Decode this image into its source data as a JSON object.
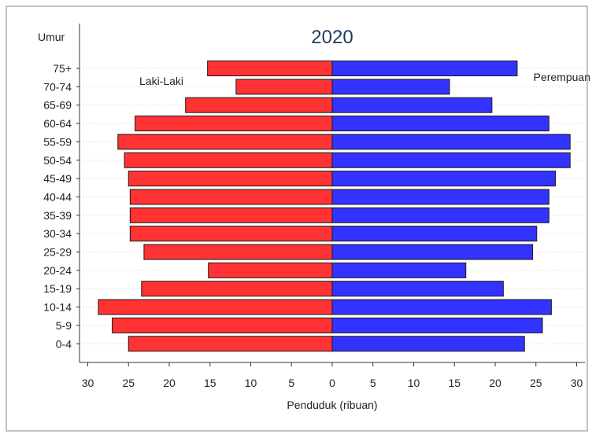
{
  "chart_data": {
    "type": "bar",
    "orientation": "horizontal",
    "title": "2020",
    "ylabel": "Umur",
    "xlabel": "Penduduk (ribuan)",
    "categories": [
      "75+",
      "70-74",
      "65-69",
      "60-64",
      "55-59",
      "50-54",
      "45-49",
      "40-44",
      "35-39",
      "30-34",
      "25-29",
      "20-24",
      "15-19",
      "10-14",
      "5-9",
      "0-4"
    ],
    "series": [
      {
        "name": "Laki-Laki",
        "color": "#ff3333",
        "values": [
          15.3,
          11.8,
          18.0,
          24.2,
          26.3,
          25.5,
          25.0,
          24.8,
          24.8,
          24.8,
          23.1,
          15.2,
          23.4,
          28.7,
          27.0,
          25.0
        ]
      },
      {
        "name": "Perempuan",
        "color": "#3333ff",
        "values": [
          22.7,
          14.4,
          19.6,
          26.6,
          29.2,
          29.2,
          27.4,
          26.6,
          26.6,
          25.1,
          24.6,
          16.4,
          21.0,
          26.9,
          25.8,
          23.6
        ]
      }
    ],
    "xticks": [
      "30",
      "25",
      "20",
      "15",
      "10",
      "5",
      "0",
      "5",
      "10",
      "15",
      "20",
      "25",
      "30"
    ],
    "xlim": [
      -30,
      30
    ],
    "grid": true
  }
}
